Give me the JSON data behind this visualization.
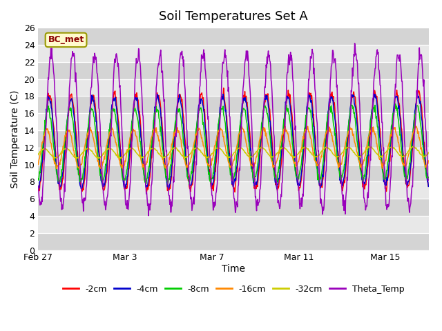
{
  "title": "Soil Temperatures Set A",
  "xlabel": "Time",
  "ylabel": "Soil Temperature (C)",
  "ylim": [
    0,
    26
  ],
  "annotation": "BC_met",
  "legend_labels": [
    "-2cm",
    "-4cm",
    "-8cm",
    "-16cm",
    "-32cm",
    "Theta_Temp"
  ],
  "line_colors": [
    "#ff0000",
    "#0000cc",
    "#00cc00",
    "#ff8800",
    "#cccc00",
    "#9900bb"
  ],
  "background_color": "#ffffff",
  "plot_bg_color": "#e0e0e0",
  "xtick_labels": [
    "Feb 27",
    "Mar 3",
    "Mar 7",
    "Mar 11",
    "Mar 15"
  ],
  "xtick_positions": [
    0,
    4,
    8,
    12,
    16
  ],
  "title_fontsize": 13,
  "axis_label_fontsize": 10,
  "tick_fontsize": 9
}
